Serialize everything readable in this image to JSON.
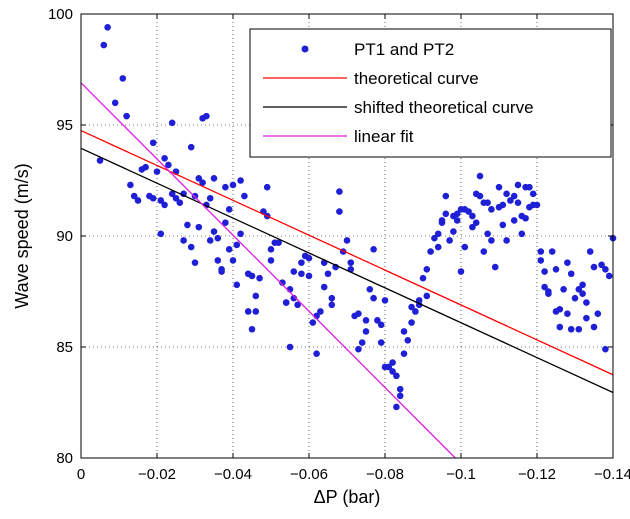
{
  "chart_data": {
    "type": "scatter",
    "title": "",
    "xlabel": "ΔP (bar)",
    "ylabel": "Wave speed (m/s)",
    "xlim": [
      0,
      -0.14
    ],
    "ylim": [
      80,
      100
    ],
    "x_ticks": [
      0,
      -0.02,
      -0.04,
      -0.06,
      -0.08,
      -0.1,
      -0.12,
      -0.14
    ],
    "x_tick_labels": [
      "0",
      "−0.02",
      "−0.04",
      "−0.06",
      "−0.08",
      "−0.1",
      "−0.12",
      "−0.14"
    ],
    "y_ticks": [
      80,
      85,
      90,
      95,
      100
    ],
    "y_tick_labels": [
      "80",
      "85",
      "90",
      "95",
      "100"
    ],
    "grid": true,
    "legend_position": "top-right",
    "series": [
      {
        "name": "PT1 and PT2",
        "kind": "markers",
        "color": "#1f1fd6",
        "points": [
          [
            -0.005,
            93.4
          ],
          [
            -0.006,
            98.6
          ],
          [
            -0.007,
            99.4
          ],
          [
            -0.009,
            96
          ],
          [
            -0.011,
            97.1
          ],
          [
            -0.012,
            95.4
          ],
          [
            -0.013,
            92.3
          ],
          [
            -0.014,
            91.8
          ],
          [
            -0.015,
            91.6
          ],
          [
            -0.016,
            93
          ],
          [
            -0.017,
            93.1
          ],
          [
            -0.018,
            91.8
          ],
          [
            -0.019,
            94.2
          ],
          [
            -0.019,
            91.7
          ],
          [
            -0.02,
            92.9
          ],
          [
            -0.021,
            91.6
          ],
          [
            -0.021,
            90.1
          ],
          [
            -0.022,
            93.5
          ],
          [
            -0.022,
            91.4
          ],
          [
            -0.023,
            93.2
          ],
          [
            -0.024,
            95.1
          ],
          [
            -0.024,
            91.9
          ],
          [
            -0.025,
            91.7
          ],
          [
            -0.025,
            92.9
          ],
          [
            -0.026,
            91.5
          ],
          [
            -0.027,
            89.8
          ],
          [
            -0.027,
            91.9
          ],
          [
            -0.028,
            90.5
          ],
          [
            -0.029,
            94
          ],
          [
            -0.029,
            89.5
          ],
          [
            -0.03,
            91.8
          ],
          [
            -0.03,
            88.8
          ],
          [
            -0.031,
            92.6
          ],
          [
            -0.031,
            90.4
          ],
          [
            -0.032,
            95.3
          ],
          [
            -0.032,
            92.4
          ],
          [
            -0.033,
            95.4
          ],
          [
            -0.033,
            91.4
          ],
          [
            -0.034,
            89.8
          ],
          [
            -0.034,
            91.7
          ],
          [
            -0.035,
            92.6
          ],
          [
            -0.035,
            90.2
          ],
          [
            -0.036,
            88.9
          ],
          [
            -0.036,
            89.9
          ],
          [
            -0.037,
            88.5
          ],
          [
            -0.037,
            88.4
          ],
          [
            -0.038,
            92.2
          ],
          [
            -0.038,
            90.6
          ],
          [
            -0.039,
            91.2
          ],
          [
            -0.039,
            89.4
          ],
          [
            -0.04,
            92.3
          ],
          [
            -0.04,
            88.9
          ],
          [
            -0.041,
            89.6
          ],
          [
            -0.041,
            87.8
          ],
          [
            -0.042,
            90.1
          ],
          [
            -0.042,
            92.5
          ],
          [
            -0.043,
            91.8
          ],
          [
            -0.044,
            88.3
          ],
          [
            -0.044,
            86.6
          ],
          [
            -0.045,
            88.2
          ],
          [
            -0.045,
            85.8
          ],
          [
            -0.046,
            87.3
          ],
          [
            -0.046,
            86.6
          ],
          [
            -0.047,
            88.1
          ],
          [
            -0.048,
            91.1
          ],
          [
            -0.049,
            92.2
          ],
          [
            -0.049,
            90.9
          ],
          [
            -0.05,
            88.9
          ],
          [
            -0.05,
            89.4
          ],
          [
            -0.051,
            89.7
          ],
          [
            -0.052,
            89.7
          ],
          [
            -0.053,
            87.9
          ],
          [
            -0.054,
            87
          ],
          [
            -0.054,
            87
          ],
          [
            -0.055,
            85
          ],
          [
            -0.055,
            87.6
          ],
          [
            -0.056,
            88.4
          ],
          [
            -0.056,
            87.2
          ],
          [
            -0.057,
            86.9
          ],
          [
            -0.058,
            88.8
          ],
          [
            -0.058,
            88.3
          ],
          [
            -0.059,
            89.1
          ],
          [
            -0.06,
            89
          ],
          [
            -0.06,
            88.2
          ],
          [
            -0.061,
            86.1
          ],
          [
            -0.062,
            84.7
          ],
          [
            -0.062,
            86.4
          ],
          [
            -0.063,
            86.6
          ],
          [
            -0.064,
            88.8
          ],
          [
            -0.064,
            87.7
          ],
          [
            -0.065,
            88.3
          ],
          [
            -0.066,
            87.2
          ],
          [
            -0.066,
            86.9
          ],
          [
            -0.067,
            88.6
          ],
          [
            -0.068,
            91.1
          ],
          [
            -0.068,
            92
          ],
          [
            -0.069,
            89.3
          ],
          [
            -0.07,
            89.8
          ],
          [
            -0.071,
            88.5
          ],
          [
            -0.071,
            88.8
          ],
          [
            -0.072,
            86.4
          ],
          [
            -0.073,
            84.9
          ],
          [
            -0.073,
            86.5
          ],
          [
            -0.074,
            85.2
          ],
          [
            -0.075,
            86.2
          ],
          [
            -0.075,
            85.7
          ],
          [
            -0.076,
            87.6
          ],
          [
            -0.077,
            89.4
          ],
          [
            -0.077,
            87.2
          ],
          [
            -0.078,
            86.2
          ],
          [
            -0.079,
            86
          ],
          [
            -0.079,
            85.2
          ],
          [
            -0.08,
            87.1
          ],
          [
            -0.08,
            84.1
          ],
          [
            -0.081,
            84.1
          ],
          [
            -0.082,
            84.3
          ],
          [
            -0.082,
            83.9
          ],
          [
            -0.083,
            83.7
          ],
          [
            -0.083,
            82.3
          ],
          [
            -0.084,
            83.1
          ],
          [
            -0.084,
            82.8
          ],
          [
            -0.085,
            84.7
          ],
          [
            -0.085,
            85.7
          ],
          [
            -0.086,
            85.3
          ],
          [
            -0.087,
            86.1
          ],
          [
            -0.087,
            86.8
          ],
          [
            -0.088,
            86.6
          ],
          [
            -0.089,
            87.1
          ],
          [
            -0.089,
            86.9
          ],
          [
            -0.09,
            88.1
          ],
          [
            -0.091,
            87.3
          ],
          [
            -0.091,
            88.5
          ],
          [
            -0.092,
            89.3
          ],
          [
            -0.093,
            89.9
          ],
          [
            -0.094,
            89.5
          ],
          [
            -0.094,
            90.1
          ],
          [
            -0.095,
            90.6
          ],
          [
            -0.095,
            90.7
          ],
          [
            -0.096,
            91
          ],
          [
            -0.096,
            91.8
          ],
          [
            -0.097,
            89.8
          ],
          [
            -0.098,
            90.2
          ],
          [
            -0.098,
            90.9
          ],
          [
            -0.099,
            91
          ],
          [
            -0.099,
            90.7
          ],
          [
            -0.1,
            91.2
          ],
          [
            -0.1,
            88.4
          ],
          [
            -0.101,
            89.5
          ],
          [
            -0.101,
            91.2
          ],
          [
            -0.102,
            91.1
          ],
          [
            -0.103,
            90.9
          ],
          [
            -0.103,
            90.4
          ],
          [
            -0.104,
            90.6
          ],
          [
            -0.104,
            91.9
          ],
          [
            -0.105,
            92.7
          ],
          [
            -0.105,
            91.8
          ],
          [
            -0.106,
            91.5
          ],
          [
            -0.106,
            89.3
          ],
          [
            -0.107,
            91.5
          ],
          [
            -0.107,
            90.1
          ],
          [
            -0.108,
            91.2
          ],
          [
            -0.108,
            89.8
          ],
          [
            -0.109,
            88.6
          ],
          [
            -0.11,
            92.2
          ],
          [
            -0.11,
            91.3
          ],
          [
            -0.111,
            90.5
          ],
          [
            -0.111,
            91.4
          ],
          [
            -0.112,
            91.9
          ],
          [
            -0.112,
            89.8
          ],
          [
            -0.113,
            91.6
          ],
          [
            -0.114,
            90.7
          ],
          [
            -0.114,
            91.8
          ],
          [
            -0.115,
            91.5
          ],
          [
            -0.115,
            92.3
          ],
          [
            -0.116,
            90.1
          ],
          [
            -0.116,
            90.9
          ],
          [
            -0.117,
            92.2
          ],
          [
            -0.117,
            90.8
          ],
          [
            -0.118,
            91.3
          ],
          [
            -0.118,
            92.2
          ],
          [
            -0.119,
            91.9
          ],
          [
            -0.119,
            91.4
          ],
          [
            -0.12,
            91.4
          ],
          [
            -0.121,
            89.3
          ],
          [
            -0.121,
            88.9
          ],
          [
            -0.122,
            87.7
          ],
          [
            -0.122,
            88.4
          ],
          [
            -0.123,
            87.5
          ],
          [
            -0.123,
            87.4
          ],
          [
            -0.124,
            89.3
          ],
          [
            -0.125,
            86.6
          ],
          [
            -0.125,
            88.5
          ],
          [
            -0.126,
            86.7
          ],
          [
            -0.126,
            85.9
          ],
          [
            -0.127,
            87.6
          ],
          [
            -0.128,
            88.8
          ],
          [
            -0.128,
            86.5
          ],
          [
            -0.129,
            88.3
          ],
          [
            -0.129,
            85.8
          ],
          [
            -0.13,
            87.2
          ],
          [
            -0.131,
            87.6
          ],
          [
            -0.131,
            85.8
          ],
          [
            -0.132,
            87.8
          ],
          [
            -0.132,
            87.4
          ],
          [
            -0.133,
            86.3
          ],
          [
            -0.133,
            87
          ],
          [
            -0.134,
            89.3
          ],
          [
            -0.135,
            85.9
          ],
          [
            -0.135,
            88.6
          ],
          [
            -0.136,
            86.5
          ],
          [
            -0.137,
            88.7
          ],
          [
            -0.138,
            84.9
          ],
          [
            -0.138,
            88.5
          ],
          [
            -0.139,
            88.2
          ],
          [
            -0.14,
            89.9
          ]
        ]
      },
      {
        "name": "theoretical curve",
        "kind": "line",
        "color": "#ff0000",
        "points": [
          [
            0,
            94.75
          ],
          [
            -0.14,
            83.75
          ]
        ]
      },
      {
        "name": "shifted theoretical curve",
        "kind": "line",
        "color": "#000000",
        "points": [
          [
            0,
            93.95
          ],
          [
            -0.14,
            82.95
          ]
        ]
      },
      {
        "name": "linear fit",
        "kind": "line",
        "color": "#e11ee1",
        "points": [
          [
            0,
            96.9
          ],
          [
            -0.0985,
            80
          ]
        ]
      }
    ]
  }
}
